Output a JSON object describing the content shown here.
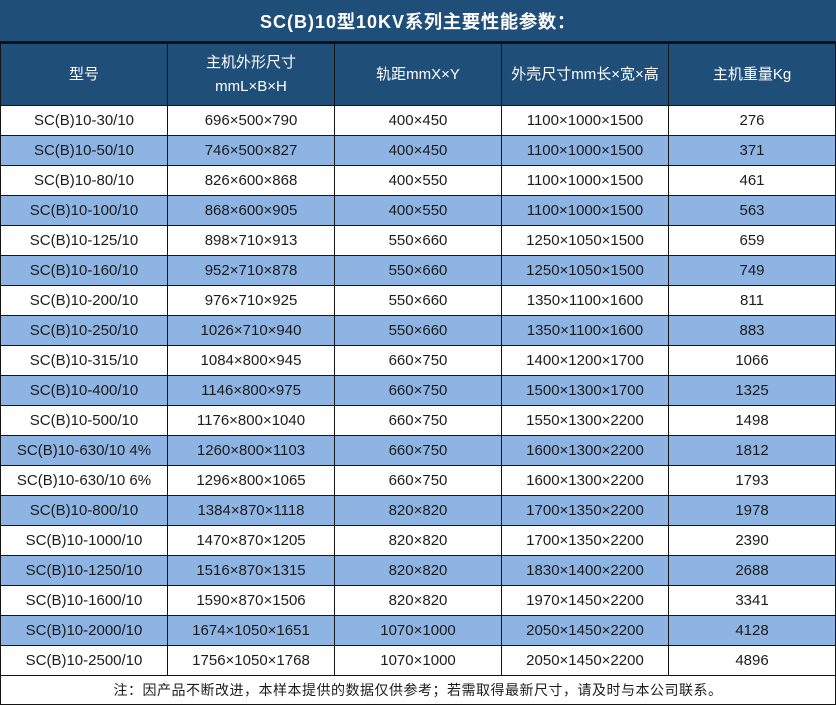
{
  "chart_data": {
    "type": "table",
    "title": "SC(B)10型10KV系列主要性能参数：",
    "columns": [
      "型号",
      "主机外形尺寸\nmmL×B×H",
      "轨距mmX×Y",
      "外壳尺寸mm长×宽×高",
      "主机重量Kg"
    ],
    "rows": [
      [
        "SC(B)10-30/10",
        "696×500×790",
        "400×450",
        "1100×1000×1500",
        "276"
      ],
      [
        "SC(B)10-50/10",
        "746×500×827",
        "400×450",
        "1100×1000×1500",
        "371"
      ],
      [
        "SC(B)10-80/10",
        "826×600×868",
        "400×550",
        "1100×1000×1500",
        "461"
      ],
      [
        "SC(B)10-100/10",
        "868×600×905",
        "400×550",
        "1100×1000×1500",
        "563"
      ],
      [
        "SC(B)10-125/10",
        "898×710×913",
        "550×660",
        "1250×1050×1500",
        "659"
      ],
      [
        "SC(B)10-160/10",
        "952×710×878",
        "550×660",
        "1250×1050×1500",
        "749"
      ],
      [
        "SC(B)10-200/10",
        "976×710×925",
        "550×660",
        "1350×1100×1600",
        "811"
      ],
      [
        "SC(B)10-250/10",
        "1026×710×940",
        "550×660",
        "1350×1100×1600",
        "883"
      ],
      [
        "SC(B)10-315/10",
        "1084×800×945",
        "660×750",
        "1400×1200×1700",
        "1066"
      ],
      [
        "SC(B)10-400/10",
        "1146×800×975",
        "660×750",
        "1500×1300×1700",
        "1325"
      ],
      [
        "SC(B)10-500/10",
        "1176×800×1040",
        "660×750",
        "1550×1300×2200",
        "1498"
      ],
      [
        "SC(B)10-630/10 4%",
        "1260×800×1103",
        "660×750",
        "1600×1300×2200",
        "1812"
      ],
      [
        "SC(B)10-630/10 6%",
        "1296×800×1065",
        "660×750",
        "1600×1300×2200",
        "1793"
      ],
      [
        "SC(B)10-800/10",
        "1384×870×1118",
        "820×820",
        "1700×1350×2200",
        "1978"
      ],
      [
        "SC(B)10-1000/10",
        "1470×870×1205",
        "820×820",
        "1700×1350×2200",
        "2390"
      ],
      [
        "SC(B)10-1250/10",
        "1516×870×1315",
        "820×820",
        "1830×1400×2200",
        "2688"
      ],
      [
        "SC(B)10-1600/10",
        "1590×870×1506",
        "820×820",
        "1970×1450×2200",
        "3341"
      ],
      [
        "SC(B)10-2000/10",
        "1674×1050×1651",
        "1070×1000",
        "2050×1450×2200",
        "4128"
      ],
      [
        "SC(B)10-2500/10",
        "1756×1050×1768",
        "1070×1000",
        "2050×1450×2200",
        "4896"
      ]
    ],
    "note": "注：因产品不断改进，本样本提供的数据仅供参考；若需取得最新尺寸，请及时与本公司联系。",
    "layout": {
      "alternating_rows": true,
      "first_row_background": "white"
    },
    "colors": {
      "header_background": "#1f4e79",
      "header_text": "#ffffff",
      "alt_row_background": "#8db4e2",
      "border": "#151515",
      "body_text": "#1c1c1c"
    }
  }
}
